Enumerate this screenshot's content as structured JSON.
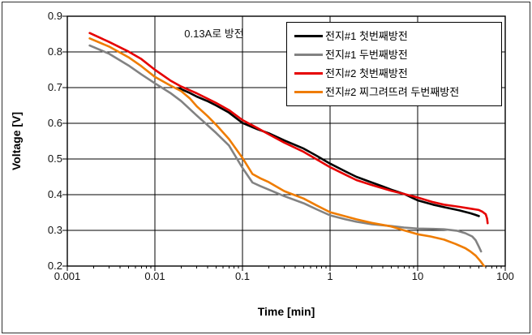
{
  "chart_data": {
    "type": "line",
    "annotation": "0.13A로 방전",
    "xlabel": "Time [min]",
    "ylabel": "Voltage [V]",
    "x_scale": "log",
    "xlim": [
      0.001,
      100
    ],
    "ylim": [
      0.2,
      0.9
    ],
    "grid": true,
    "legend_position": "top-right-inside",
    "x_ticks": [
      "0.001",
      "0.01",
      "0.1",
      "1",
      "10",
      "100"
    ],
    "y_ticks": [
      "0.2",
      "0.3",
      "0.4",
      "0.5",
      "0.6",
      "0.7",
      "0.8",
      "0.9"
    ],
    "series": [
      {
        "name": "전지#1 첫번째방전",
        "color": "#000000",
        "points": [
          [
            0.019,
            0.698
          ],
          [
            0.025,
            0.685
          ],
          [
            0.03,
            0.675
          ],
          [
            0.04,
            0.662
          ],
          [
            0.05,
            0.65
          ],
          [
            0.07,
            0.63
          ],
          [
            0.1,
            0.601
          ],
          [
            0.13,
            0.589
          ],
          [
            0.15,
            0.583
          ],
          [
            0.2,
            0.572
          ],
          [
            0.3,
            0.552
          ],
          [
            0.5,
            0.529
          ],
          [
            0.7,
            0.509
          ],
          [
            1,
            0.487
          ],
          [
            1.5,
            0.465
          ],
          [
            2,
            0.45
          ],
          [
            3,
            0.434
          ],
          [
            4,
            0.423
          ],
          [
            5,
            0.414
          ],
          [
            7,
            0.402
          ],
          [
            10,
            0.384
          ],
          [
            15,
            0.372
          ],
          [
            20,
            0.365
          ],
          [
            30,
            0.356
          ],
          [
            40,
            0.348
          ],
          [
            45,
            0.344
          ],
          [
            50,
            0.34
          ]
        ]
      },
      {
        "name": "전지#1 두번째방전",
        "color": "#828282",
        "points": [
          [
            0.0018,
            0.818
          ],
          [
            0.003,
            0.795
          ],
          [
            0.005,
            0.762
          ],
          [
            0.007,
            0.737
          ],
          [
            0.01,
            0.712
          ],
          [
            0.015,
            0.685
          ],
          [
            0.02,
            0.662
          ],
          [
            0.03,
            0.622
          ],
          [
            0.05,
            0.573
          ],
          [
            0.07,
            0.538
          ],
          [
            0.1,
            0.475
          ],
          [
            0.13,
            0.434
          ],
          [
            0.16,
            0.424
          ],
          [
            0.2,
            0.414
          ],
          [
            0.3,
            0.396
          ],
          [
            0.5,
            0.376
          ],
          [
            0.7,
            0.359
          ],
          [
            1,
            0.342
          ],
          [
            1.5,
            0.331
          ],
          [
            2,
            0.324
          ],
          [
            3,
            0.317
          ],
          [
            5,
            0.312
          ],
          [
            7,
            0.308
          ],
          [
            10,
            0.305
          ],
          [
            15,
            0.304
          ],
          [
            20,
            0.303
          ],
          [
            28,
            0.299
          ],
          [
            35,
            0.292
          ],
          [
            42,
            0.283
          ],
          [
            46,
            0.272
          ],
          [
            50,
            0.254
          ],
          [
            53,
            0.241
          ]
        ]
      },
      {
        "name": "전지#2 첫번째방전",
        "color": "#e60000",
        "points": [
          [
            0.0018,
            0.853
          ],
          [
            0.003,
            0.828
          ],
          [
            0.005,
            0.801
          ],
          [
            0.007,
            0.78
          ],
          [
            0.01,
            0.75
          ],
          [
            0.015,
            0.72
          ],
          [
            0.02,
            0.703
          ],
          [
            0.03,
            0.684
          ],
          [
            0.05,
            0.657
          ],
          [
            0.07,
            0.637
          ],
          [
            0.1,
            0.609
          ],
          [
            0.15,
            0.586
          ],
          [
            0.2,
            0.569
          ],
          [
            0.3,
            0.546
          ],
          [
            0.5,
            0.52
          ],
          [
            0.7,
            0.499
          ],
          [
            1,
            0.477
          ],
          [
            1.5,
            0.456
          ],
          [
            2,
            0.441
          ],
          [
            3,
            0.427
          ],
          [
            4,
            0.418
          ],
          [
            5,
            0.411
          ],
          [
            7,
            0.402
          ],
          [
            10,
            0.392
          ],
          [
            15,
            0.379
          ],
          [
            20,
            0.372
          ],
          [
            30,
            0.366
          ],
          [
            40,
            0.361
          ],
          [
            50,
            0.357
          ],
          [
            55,
            0.352
          ],
          [
            60,
            0.345
          ],
          [
            62,
            0.333
          ],
          [
            63,
            0.32
          ]
        ]
      },
      {
        "name": "전지#2 찌그려뜨려 두번째방전",
        "color": "#ef7c00",
        "points": [
          [
            0.0018,
            0.838
          ],
          [
            0.003,
            0.815
          ],
          [
            0.005,
            0.785
          ],
          [
            0.007,
            0.76
          ],
          [
            0.01,
            0.73
          ],
          [
            0.015,
            0.706
          ],
          [
            0.02,
            0.69
          ],
          [
            0.025,
            0.67
          ],
          [
            0.03,
            0.648
          ],
          [
            0.04,
            0.62
          ],
          [
            0.05,
            0.596
          ],
          [
            0.07,
            0.556
          ],
          [
            0.1,
            0.503
          ],
          [
            0.13,
            0.458
          ],
          [
            0.16,
            0.446
          ],
          [
            0.2,
            0.435
          ],
          [
            0.3,
            0.41
          ],
          [
            0.5,
            0.389
          ],
          [
            0.7,
            0.37
          ],
          [
            1,
            0.351
          ],
          [
            1.5,
            0.339
          ],
          [
            2,
            0.331
          ],
          [
            3,
            0.321
          ],
          [
            5,
            0.311
          ],
          [
            7,
            0.3
          ],
          [
            10,
            0.289
          ],
          [
            14,
            0.283
          ],
          [
            20,
            0.274
          ],
          [
            27,
            0.262
          ],
          [
            35,
            0.25
          ],
          [
            40,
            0.241
          ],
          [
            46,
            0.229
          ],
          [
            52,
            0.214
          ],
          [
            58,
            0.198
          ]
        ]
      }
    ]
  }
}
